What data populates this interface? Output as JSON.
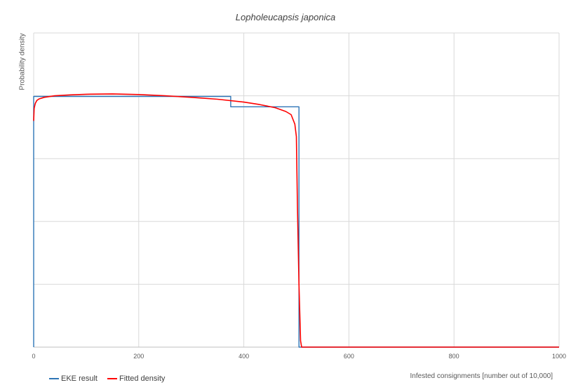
{
  "chart_data": {
    "type": "line",
    "title": "Lopholeucapsis japonica",
    "xlabel": "Infested consignments [number out of 10,000]",
    "ylabel": "Probability density",
    "xlim": [
      0,
      1000
    ],
    "ylim": [
      0,
      1
    ],
    "x_ticks": [
      "0",
      "200",
      "400",
      "600",
      "800",
      "1000"
    ],
    "y_ticks_count": 5,
    "grid": true,
    "legend": "bottom-left",
    "series": [
      {
        "name": "EKE result",
        "color": "#2e75b6",
        "style": "step",
        "x": [
          0,
          0,
          375,
          375,
          505,
          505,
          1000
        ],
        "y": [
          0,
          0.798,
          0.798,
          0.765,
          0.765,
          0,
          0
        ]
      },
      {
        "name": "Fitted density",
        "color": "#ff0000",
        "style": "line",
        "x": [
          0,
          1,
          3,
          6,
          10,
          20,
          40,
          70,
          100,
          150,
          200,
          250,
          300,
          350,
          400,
          430,
          460,
          480,
          490,
          497,
          500,
          502,
          505,
          508,
          510,
          1000
        ],
        "y": [
          0.72,
          0.76,
          0.775,
          0.785,
          0.79,
          0.795,
          0.8,
          0.803,
          0.805,
          0.806,
          0.804,
          0.8,
          0.795,
          0.789,
          0.78,
          0.772,
          0.762,
          0.75,
          0.74,
          0.71,
          0.67,
          0.45,
          0.2,
          0.02,
          0,
          0
        ]
      }
    ]
  }
}
